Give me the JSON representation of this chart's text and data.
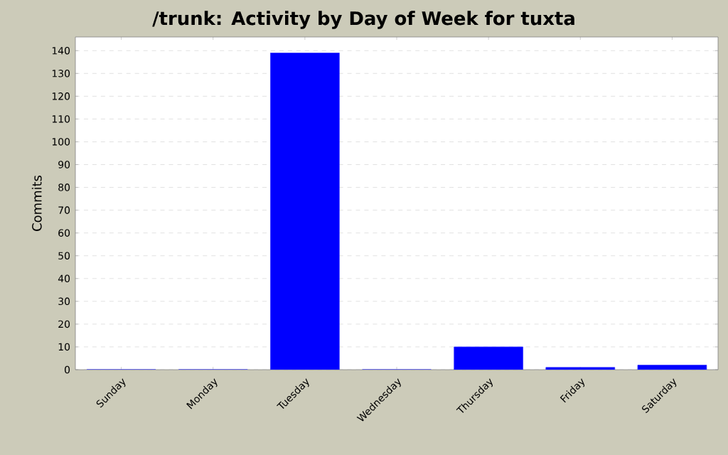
{
  "chart_data": {
    "type": "bar",
    "title": "/trunk: Activity by Day of Week for tuxta",
    "ylabel": "Commits",
    "categories": [
      "Sunday",
      "Monday",
      "Tuesday",
      "Wednesday",
      "Thursday",
      "Friday",
      "Saturday"
    ],
    "values": [
      0,
      0,
      139,
      0,
      10,
      1,
      2
    ],
    "color": "#0000ff",
    "ylim": [
      0,
      146
    ],
    "yticks": [
      0,
      10,
      20,
      30,
      40,
      50,
      60,
      70,
      80,
      90,
      100,
      110,
      120,
      130,
      140
    ],
    "grid": "y"
  }
}
